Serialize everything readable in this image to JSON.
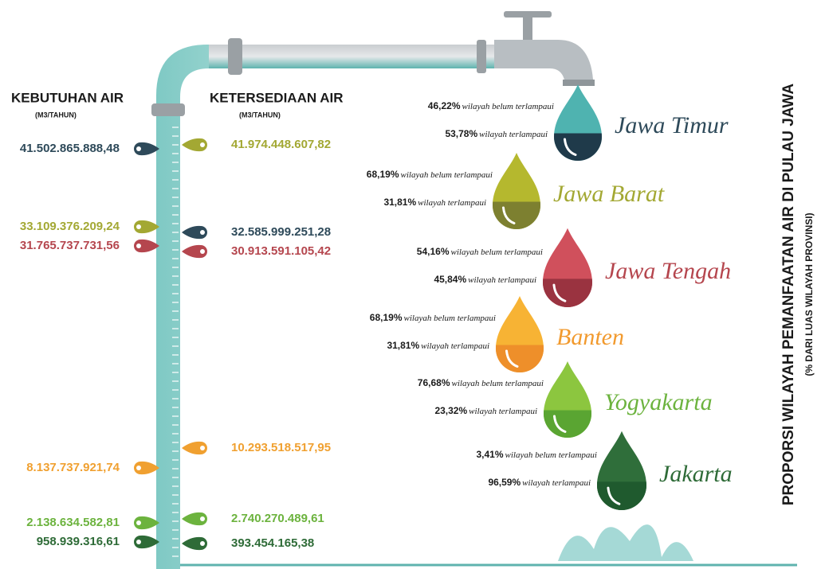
{
  "needs_header": {
    "title": "KEBUTUHAN AIR",
    "unit": "(M3/TAHUN)"
  },
  "supply_header": {
    "title": "KETERSEDIAAN AIR",
    "unit": "(M3/TAHUN)"
  },
  "needs": [
    "41.502.865.888,48",
    "33.109.376.209,24",
    "31.765.737.731,56",
    "8.137.737.921,74",
    "2.138.634.582,81",
    "958.939.316,61"
  ],
  "supply": [
    "41.974.448.607,82",
    "32.585.999.251,28",
    "30.913.591.105,42",
    "10.293.518.517,95",
    "2.740.270.489,61",
    "393.454.165,38"
  ],
  "side_title": {
    "title": "PROPORSI WILAYAH PEMANFAATAN AIR DI PULAU JAWA",
    "subtitle": "(% DARI LUAS WILAYAH PROVINSI)"
  },
  "provinces": [
    {
      "name": "Jawa Timur",
      "not_exceeded": {
        "pct": "46,22%",
        "text": "wilayah belum terlampaui"
      },
      "exceeded": {
        "pct": "53,78%",
        "text": "wilayah terlampaui"
      }
    },
    {
      "name": "Jawa Barat",
      "not_exceeded": {
        "pct": "68,19%",
        "text": "wilayah belum terlampaui"
      },
      "exceeded": {
        "pct": "31,81%",
        "text": "wilayah terlampaui"
      }
    },
    {
      "name": "Jawa Tengah",
      "not_exceeded": {
        "pct": "54,16%",
        "text": "wilayah belum terlampaui"
      },
      "exceeded": {
        "pct": "45,84%",
        "text": "wilayah terlampaui"
      }
    },
    {
      "name": "Banten",
      "not_exceeded": {
        "pct": "68,19%",
        "text": "wilayah belum terlampaui"
      },
      "exceeded": {
        "pct": "31,81%",
        "text": "wilayah terlampaui"
      }
    },
    {
      "name": "Yogyakarta",
      "not_exceeded": {
        "pct": "76,68%",
        "text": "wilayah belum terlampaui"
      },
      "exceeded": {
        "pct": "23,32%",
        "text": "wilayah terlampaui"
      }
    },
    {
      "name": "Jakarta",
      "not_exceeded": {
        "pct": "3,41%",
        "text": "wilayah belum terlampaui"
      },
      "exceeded": {
        "pct": "96,59%",
        "text": "wilayah terlampaui"
      }
    }
  ]
}
